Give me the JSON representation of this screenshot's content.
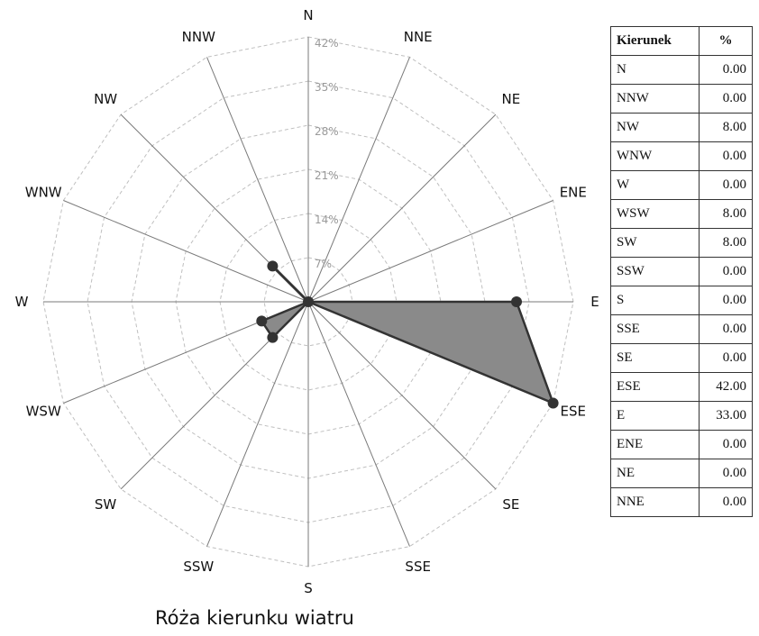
{
  "chart_data": {
    "type": "radar",
    "title": "Róża kierunku wiatru",
    "directions": [
      "N",
      "NNE",
      "NE",
      "ENE",
      "E",
      "ESE",
      "SE",
      "SSE",
      "S",
      "SSW",
      "SW",
      "WSW",
      "W",
      "WNW",
      "NW",
      "NNW"
    ],
    "values": [
      0,
      0,
      0,
      0,
      33,
      42,
      0,
      0,
      0,
      0,
      8,
      8,
      0,
      0,
      8,
      0
    ],
    "rlim": [
      0,
      42
    ],
    "ring_labels": [
      "7%",
      "14%",
      "21%",
      "28%",
      "35%",
      "42%"
    ],
    "grid": true,
    "colors": {
      "fill": "#8a8a8a",
      "line": "#333333",
      "marker": "#333333",
      "grid": "#bfbfbf"
    }
  },
  "table": {
    "headers": [
      "Kierunek",
      "%"
    ],
    "rows": [
      [
        "N",
        "0.00"
      ],
      [
        "NNW",
        "0.00"
      ],
      [
        "NW",
        "8.00"
      ],
      [
        "WNW",
        "0.00"
      ],
      [
        "W",
        "0.00"
      ],
      [
        "WSW",
        "8.00"
      ],
      [
        "SW",
        "8.00"
      ],
      [
        "SSW",
        "0.00"
      ],
      [
        "S",
        "0.00"
      ],
      [
        "SSE",
        "0.00"
      ],
      [
        "SE",
        "0.00"
      ],
      [
        "ESE",
        "42.00"
      ],
      [
        "E",
        "33.00"
      ],
      [
        "ENE",
        "0.00"
      ],
      [
        "NE",
        "0.00"
      ],
      [
        "NNE",
        "0.00"
      ]
    ]
  }
}
